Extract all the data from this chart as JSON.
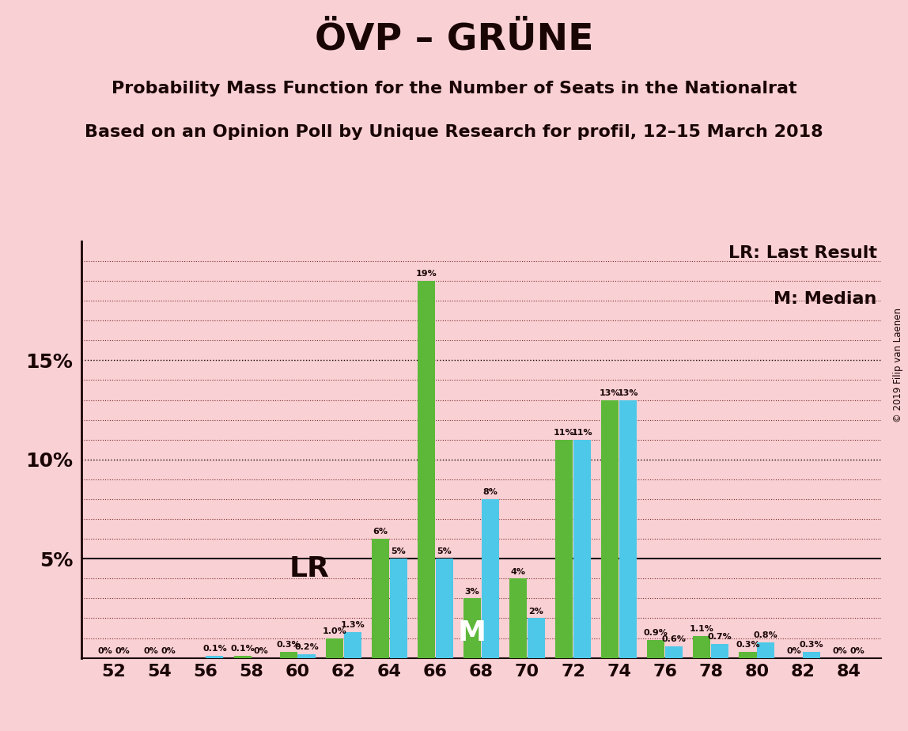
{
  "title": "ÖVP – GRÜNE",
  "subtitle1": "Probability Mass Function for the Number of Seats in the Nationalrat",
  "subtitle2": "Based on an Opinion Poll by Unique Research for profil, 12–15 March 2018",
  "background_color": "#f9d0d4",
  "bar_color_green": "#5db83a",
  "bar_color_cyan": "#4ec8e8",
  "text_color": "#1a0505",
  "seats": [
    52,
    54,
    56,
    58,
    60,
    62,
    64,
    66,
    68,
    70,
    72,
    74,
    76,
    78,
    80,
    82,
    84
  ],
  "pmf_green": [
    0.0,
    0.0,
    0.0,
    0.1,
    0.3,
    1.0,
    6.0,
    19.0,
    3.0,
    4.0,
    11.0,
    13.0,
    0.9,
    1.1,
    0.3,
    0.0,
    0.0
  ],
  "pmf_cyan": [
    0.0,
    0.0,
    0.1,
    0.0,
    0.2,
    1.3,
    5.0,
    5.0,
    8.0,
    2.0,
    11.0,
    13.0,
    0.6,
    0.7,
    0.8,
    0.3,
    0.0
  ],
  "label_green": [
    "0%",
    "0%",
    "",
    "0.1%",
    "0.3%",
    "1.0%",
    "6%",
    "19%",
    "3%",
    "4%",
    "11%",
    "13%",
    "0.9%",
    "1.1%",
    "0.3%",
    "0%",
    "0%"
  ],
  "label_cyan": [
    "0%",
    "0%",
    "0.1%",
    "0%",
    "0.2%",
    "1.3%",
    "5%",
    "5%",
    "8%",
    "2%",
    "11%",
    "13%",
    "0.6%",
    "0.7%",
    "0.8%",
    "0.3%",
    "0%"
  ],
  "LR_seat_idx": 5,
  "M_seat_idx": 8,
  "ylim": [
    0,
    21
  ],
  "copyright": "© 2019 Filip van Laenen",
  "legend_LR": "LR: Last Result",
  "legend_M": "M: Median"
}
